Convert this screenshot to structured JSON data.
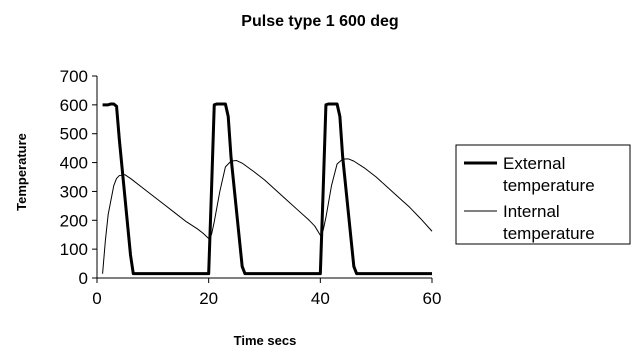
{
  "chart_data": {
    "type": "line",
    "title": "Pulse type 1 600 deg",
    "xlabel": "Time secs",
    "ylabel": "Temperature",
    "xlim": [
      0,
      60
    ],
    "ylim": [
      0,
      700
    ],
    "x_ticks": [
      "0",
      "20",
      "40",
      "60"
    ],
    "y_ticks": [
      "0",
      "100",
      "200",
      "300",
      "400",
      "500",
      "600",
      "700"
    ],
    "grid": false,
    "legend_placement": "right",
    "series": [
      {
        "name_lines": [
          "External",
          "temperature"
        ],
        "color": "#000000",
        "points": [
          [
            1,
            600
          ],
          [
            2,
            600
          ],
          [
            2.5,
            603
          ],
          [
            3,
            603
          ],
          [
            3.5,
            595
          ],
          [
            4,
            480
          ],
          [
            5,
            280
          ],
          [
            6,
            80
          ],
          [
            6.5,
            15
          ],
          [
            20,
            15
          ],
          [
            20.5,
            300
          ],
          [
            21,
            600
          ],
          [
            21.5,
            603
          ],
          [
            23,
            603
          ],
          [
            23.5,
            560
          ],
          [
            24,
            420
          ],
          [
            25,
            230
          ],
          [
            26,
            40
          ],
          [
            26.5,
            15
          ],
          [
            40,
            15
          ],
          [
            40.5,
            300
          ],
          [
            41,
            600
          ],
          [
            41.5,
            603
          ],
          [
            43,
            603
          ],
          [
            43.5,
            560
          ],
          [
            44,
            420
          ],
          [
            45,
            230
          ],
          [
            46,
            40
          ],
          [
            46.5,
            15
          ],
          [
            60,
            15
          ]
        ]
      },
      {
        "name_lines": [
          "Internal",
          "temperature"
        ],
        "color": "#000000",
        "points": [
          [
            1,
            15
          ],
          [
            1.5,
            130
          ],
          [
            2,
            220
          ],
          [
            3,
            320
          ],
          [
            3.5,
            345
          ],
          [
            4,
            355
          ],
          [
            5,
            358
          ],
          [
            6,
            345
          ],
          [
            8,
            315
          ],
          [
            10,
            285
          ],
          [
            12,
            255
          ],
          [
            14,
            225
          ],
          [
            16,
            195
          ],
          [
            18,
            170
          ],
          [
            19,
            155
          ],
          [
            20,
            137
          ],
          [
            20.5,
            150
          ],
          [
            21,
            195
          ],
          [
            22,
            300
          ],
          [
            23,
            385
          ],
          [
            24,
            405
          ],
          [
            25,
            407
          ],
          [
            26,
            398
          ],
          [
            28,
            370
          ],
          [
            30,
            340
          ],
          [
            32,
            305
          ],
          [
            34,
            270
          ],
          [
            36,
            235
          ],
          [
            38,
            200
          ],
          [
            39,
            180
          ],
          [
            40,
            148
          ],
          [
            40.5,
            165
          ],
          [
            41,
            210
          ],
          [
            42,
            320
          ],
          [
            43,
            395
          ],
          [
            44,
            412
          ],
          [
            45,
            413
          ],
          [
            46,
            405
          ],
          [
            48,
            380
          ],
          [
            50,
            350
          ],
          [
            52,
            315
          ],
          [
            54,
            280
          ],
          [
            56,
            245
          ],
          [
            58,
            205
          ],
          [
            60,
            162
          ]
        ]
      }
    ]
  }
}
